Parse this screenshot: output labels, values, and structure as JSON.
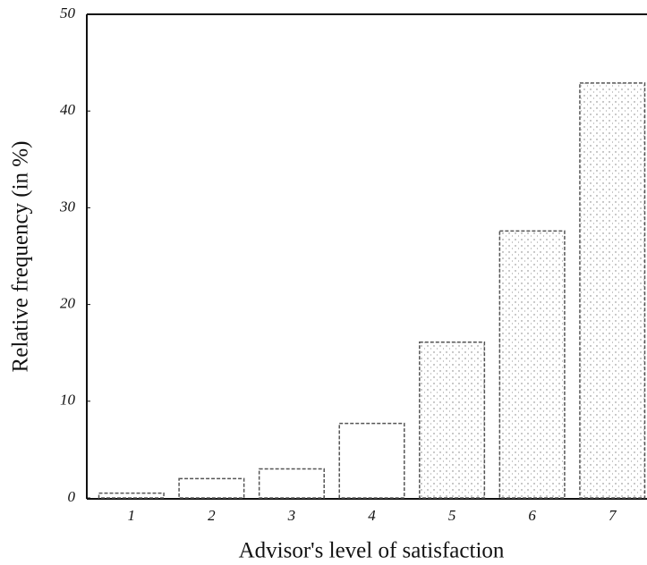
{
  "chart_data": {
    "type": "bar",
    "x_label": "Advisor's level of satisfaction",
    "y_label": "Relative frequency (in %)",
    "categories": [
      "1",
      "2",
      "3",
      "4",
      "5",
      "6",
      "7"
    ],
    "values": [
      0.5,
      2,
      3,
      7.7,
      16.1,
      27.6,
      42.9
    ],
    "color": "#555555",
    "ylim": [
      0,
      50
    ],
    "yticks": [
      0,
      10,
      20,
      30,
      40,
      50
    ]
  }
}
